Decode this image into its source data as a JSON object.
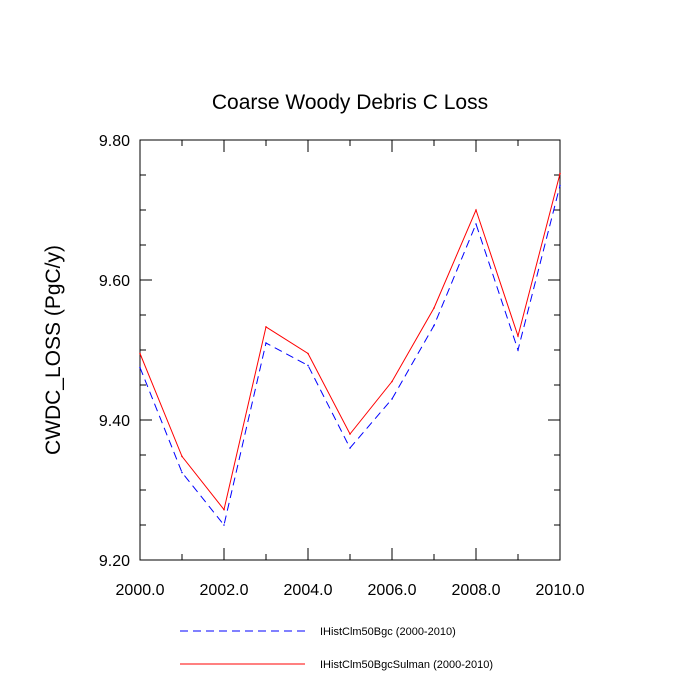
{
  "chart_data": {
    "type": "line",
    "title": "Coarse Woody Debris C Loss",
    "xlabel": "",
    "ylabel": "CWDC_LOSS  (PgC/y)",
    "xlim": [
      2000,
      2010
    ],
    "ylim": [
      9.2,
      9.8
    ],
    "x_ticks": [
      2000,
      2002,
      2004,
      2006,
      2008,
      2010
    ],
    "x_tick_labels": [
      "2000.0",
      "2002.0",
      "2004.0",
      "2006.0",
      "2008.0",
      "2010.0"
    ],
    "y_ticks": [
      9.2,
      9.4,
      9.6,
      9.8
    ],
    "y_tick_labels": [
      "9.20",
      "9.40",
      "9.60",
      "9.80"
    ],
    "x": [
      2000,
      2001,
      2002,
      2003,
      2004,
      2005,
      2006,
      2007,
      2008,
      2009,
      2010
    ],
    "series": [
      {
        "name": "IHistClm50Bgc (2000-2010)",
        "color": "#0000ff",
        "dash": "dashed",
        "values": [
          9.475,
          9.325,
          9.25,
          9.51,
          9.478,
          9.36,
          9.43,
          9.535,
          9.68,
          9.5,
          9.735
        ]
      },
      {
        "name": "IHistClm50BgcSulman (2000-2010)",
        "color": "#ff0000",
        "dash": "solid",
        "values": [
          9.495,
          9.348,
          9.272,
          9.533,
          9.495,
          9.38,
          9.455,
          9.56,
          9.7,
          9.52,
          9.752
        ]
      }
    ],
    "grid": false,
    "legend_position": "bottom"
  }
}
